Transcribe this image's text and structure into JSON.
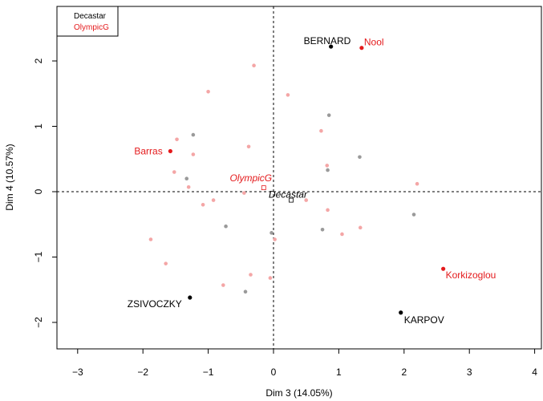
{
  "chart_data": {
    "type": "scatter",
    "xlabel": "Dim 3 (14.05%)",
    "ylabel": "Dim 4 (10.57%)",
    "xlim": [
      -3.3,
      4.1
    ],
    "ylim": [
      -2.4,
      2.8
    ],
    "xticks": [
      -3,
      -2,
      -1,
      0,
      1,
      2,
      3,
      4
    ],
    "yticks": [
      -2,
      -1,
      0,
      1,
      2
    ],
    "reference_lines": {
      "x": 0,
      "y": 0,
      "style": "dashed"
    },
    "legend": {
      "placement": "top-left",
      "entries": [
        {
          "label": "Decastar",
          "color": "#000000"
        },
        {
          "label": "OlympicG",
          "color": "#e41a1c"
        }
      ]
    },
    "series": [
      {
        "name": "Decastar",
        "color": "#000000",
        "labeled_points": [
          {
            "label": "BERNARD",
            "x": 0.88,
            "y": 2.22
          },
          {
            "label": "ZSIVOCZKY",
            "x": -1.28,
            "y": -1.62
          },
          {
            "label": "KARPOV",
            "x": 1.95,
            "y": -1.85
          }
        ],
        "supplementary_points": [
          {
            "x": -1.23,
            "y": 0.87
          },
          {
            "x": -1.33,
            "y": 0.2
          },
          {
            "x": -0.73,
            "y": -0.53
          },
          {
            "x": -0.43,
            "y": -1.53
          },
          {
            "x": -0.03,
            "y": -0.63
          },
          {
            "x": 0.85,
            "y": 1.17
          },
          {
            "x": 0.83,
            "y": 0.33
          },
          {
            "x": 1.32,
            "y": 0.53
          },
          {
            "x": 0.75,
            "y": -0.58
          },
          {
            "x": 2.15,
            "y": -0.35
          }
        ]
      },
      {
        "name": "OlympicG",
        "color": "#e41a1c",
        "labeled_points": [
          {
            "label": "Nool",
            "x": 1.35,
            "y": 2.2
          },
          {
            "label": "Barras",
            "x": -1.58,
            "y": 0.62
          },
          {
            "label": "Korkizoglou",
            "x": 2.6,
            "y": -1.18
          }
        ],
        "supplementary_points": [
          {
            "x": -0.3,
            "y": 1.93
          },
          {
            "x": -1.0,
            "y": 1.53
          },
          {
            "x": 0.22,
            "y": 1.48
          },
          {
            "x": -1.48,
            "y": 0.8
          },
          {
            "x": -1.23,
            "y": 0.57
          },
          {
            "x": -0.38,
            "y": 0.69
          },
          {
            "x": 0.73,
            "y": 0.93
          },
          {
            "x": 0.82,
            "y": 0.4
          },
          {
            "x": -1.52,
            "y": 0.3
          },
          {
            "x": -1.3,
            "y": 0.07
          },
          {
            "x": 2.2,
            "y": 0.12
          },
          {
            "x": -0.45,
            "y": -0.02
          },
          {
            "x": -0.92,
            "y": -0.13
          },
          {
            "x": -1.08,
            "y": -0.2
          },
          {
            "x": 0.5,
            "y": -0.13
          },
          {
            "x": 0.83,
            "y": -0.28
          },
          {
            "x": -1.88,
            "y": -0.73
          },
          {
            "x": 0.02,
            "y": -0.73
          },
          {
            "x": 1.05,
            "y": -0.65
          },
          {
            "x": 1.33,
            "y": -0.55
          },
          {
            "x": -1.65,
            "y": -1.1
          },
          {
            "x": -0.35,
            "y": -1.27
          },
          {
            "x": -0.05,
            "y": -1.32
          },
          {
            "x": -0.77,
            "y": -1.43
          }
        ]
      }
    ],
    "group_centers": [
      {
        "label": "OlympicG",
        "x": -0.15,
        "y": 0.06,
        "color": "#e41a1c"
      },
      {
        "label": "Decastar",
        "x": 0.27,
        "y": -0.13,
        "color": "#000000"
      }
    ]
  }
}
